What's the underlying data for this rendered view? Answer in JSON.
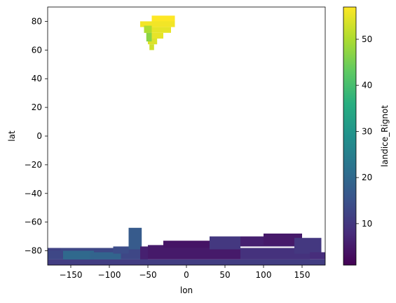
{
  "chart_data": {
    "type": "heatmap",
    "title": "",
    "xlabel": "lon",
    "ylabel": "lat",
    "xlim": [
      -180,
      180
    ],
    "ylim": [
      -90,
      90
    ],
    "xticks": [
      -150,
      -100,
      -50,
      0,
      50,
      100,
      150
    ],
    "xtick_labels": [
      "−150",
      "−100",
      "−50",
      "0",
      "50",
      "100",
      "150"
    ],
    "yticks": [
      -80,
      -60,
      -40,
      -20,
      0,
      20,
      40,
      60,
      80
    ],
    "ytick_labels": [
      "−80",
      "−60",
      "−40",
      "−20",
      "0",
      "20",
      "40",
      "60",
      "80"
    ],
    "grid": false,
    "colorbar": {
      "label": "landice_Rignot",
      "min": 1,
      "max": 57,
      "ticks": [
        10,
        20,
        30,
        40,
        50
      ],
      "colormap": "viridis"
    },
    "regions": [
      {
        "name": "Greenland",
        "cells": [
          {
            "lon": [
              -45,
              -15
            ],
            "lat": [
              80,
              84
            ],
            "value": 57
          },
          {
            "lon": [
              -60,
              -15
            ],
            "lat": [
              76,
              80
            ],
            "value": 56
          },
          {
            "lon": [
              -55,
              -20
            ],
            "lat": [
              72,
              76
            ],
            "value": 55
          },
          {
            "lon": [
              -52,
              -30
            ],
            "lat": [
              68,
              72
            ],
            "value": 55
          },
          {
            "lon": [
              -50,
              -38
            ],
            "lat": [
              64,
              68
            ],
            "value": 54
          },
          {
            "lon": [
              -48,
              -42
            ],
            "lat": [
              60,
              64
            ],
            "value": 53
          },
          {
            "lon": [
              -55,
              -45
            ],
            "lat": [
              72,
              77
            ],
            "value": 50
          },
          {
            "lon": [
              -52,
              -45
            ],
            "lat": [
              66,
              72
            ],
            "value": 47
          }
        ]
      },
      {
        "name": "Antarctica",
        "cells": [
          {
            "lon": [
              -180,
              180
            ],
            "lat": [
              -90,
              -86
            ],
            "value": 11
          },
          {
            "lon": [
              -180,
              -50
            ],
            "lat": [
              -86,
              -78
            ],
            "value": 13
          },
          {
            "lon": [
              -160,
              -120
            ],
            "lat": [
              -86,
              -80
            ],
            "value": 20
          },
          {
            "lon": [
              -125,
              -85
            ],
            "lat": [
              -86,
              -81
            ],
            "value": 19
          },
          {
            "lon": [
              -180,
              -163
            ],
            "lat": [
              -80,
              -78
            ],
            "value": 12
          },
          {
            "lon": [
              -95,
              -75
            ],
            "lat": [
              -82,
              -77
            ],
            "value": 14
          },
          {
            "lon": [
              -75,
              -58
            ],
            "lat": [
              -79,
              -64
            ],
            "value": 17
          },
          {
            "lon": [
              -60,
              -50
            ],
            "lat": [
              -86,
              -77
            ],
            "value": 6
          },
          {
            "lon": [
              -50,
              70
            ],
            "lat": [
              -86,
              -76
            ],
            "value": 5
          },
          {
            "lon": [
              -30,
              30
            ],
            "lat": [
              -78,
              -73
            ],
            "value": 4
          },
          {
            "lon": [
              30,
              70
            ],
            "lat": [
              -79,
              -70
            ],
            "value": 10
          },
          {
            "lon": [
              70,
              160
            ],
            "lat": [
              -86,
              -78
            ],
            "value": 9
          },
          {
            "lon": [
              70,
              140
            ],
            "lat": [
              -77,
              -70
            ],
            "value": 6
          },
          {
            "lon": [
              100,
              150
            ],
            "lat": [
              -76,
              -68
            ],
            "value": 5
          },
          {
            "lon": [
              140,
              175
            ],
            "lat": [
              -82,
              -71
            ],
            "value": 10
          },
          {
            "lon": [
              160,
              180
            ],
            "lat": [
              -86,
              -81
            ],
            "value": 8
          }
        ]
      }
    ]
  }
}
